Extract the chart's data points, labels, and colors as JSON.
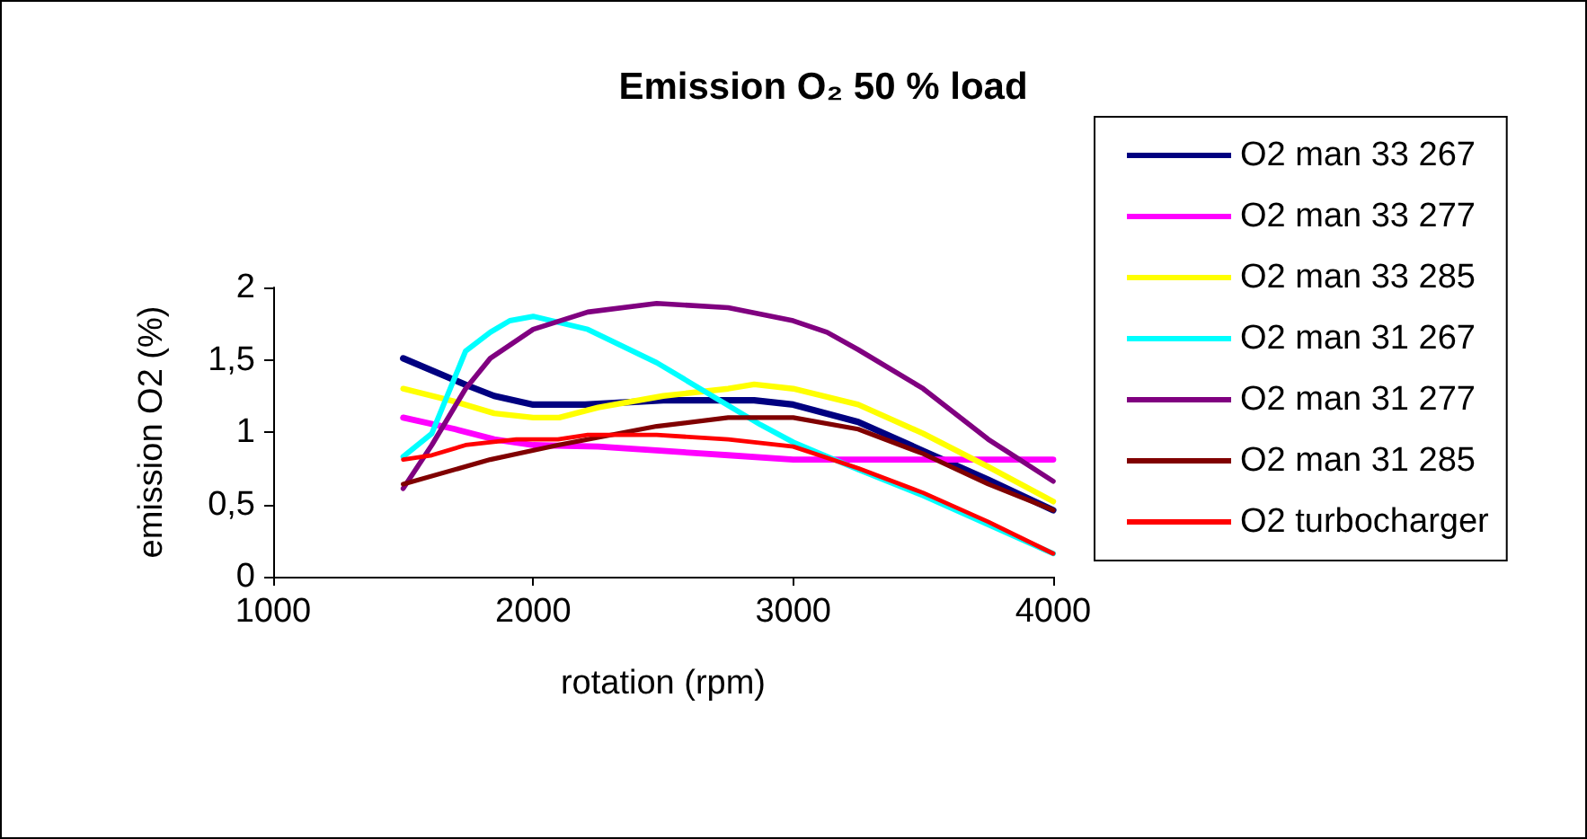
{
  "chart_data": {
    "type": "line",
    "title": "Emission O₂ 50 % load",
    "xlabel": "rotation (rpm)",
    "ylabel": "emission O2 (%)",
    "xlim": [
      1000,
      4000
    ],
    "xticks": [
      1000,
      2000,
      3000,
      4000
    ],
    "ylim": [
      0,
      2
    ],
    "yticks": [
      0,
      {
        "value": 0.5,
        "label": "0,5"
      },
      1,
      {
        "value": 1.5,
        "label": "1,5"
      },
      2
    ],
    "grid": false,
    "legend": "right",
    "marker": "none",
    "line_style": "solid",
    "series": [
      {
        "name": "O2 man 33 267",
        "color": "#000080",
        "x": [
          1500,
          1750,
          1850,
          2000,
          2200,
          2500,
          2850,
          3000,
          3250,
          3500,
          3750,
          4000
        ],
        "values": [
          1.51,
          1.32,
          1.25,
          1.19,
          1.19,
          1.22,
          1.22,
          1.19,
          1.07,
          0.87,
          0.67,
          0.46
        ]
      },
      {
        "name": "O2 man 33 277",
        "color": "#ff00ff",
        "x": [
          1500,
          1700,
          1850,
          2000,
          2250,
          2500,
          2750,
          3000,
          3250,
          4000
        ],
        "values": [
          1.1,
          1.02,
          0.95,
          0.91,
          0.9,
          0.87,
          0.84,
          0.81,
          0.81,
          0.81
        ]
      },
      {
        "name": "O2 man 33 285",
        "color": "#ffff00",
        "x": [
          1500,
          1700,
          1850,
          2000,
          2100,
          2250,
          2500,
          2750,
          2850,
          3000,
          3250,
          3500,
          3750,
          4000
        ],
        "values": [
          1.3,
          1.21,
          1.13,
          1.1,
          1.1,
          1.17,
          1.25,
          1.3,
          1.33,
          1.3,
          1.19,
          0.99,
          0.76,
          0.52
        ]
      },
      {
        "name": "O2 man 31 267",
        "color": "#00ffff",
        "x": [
          1500,
          1610,
          1740,
          1835,
          1910,
          2000,
          2210,
          2475,
          2875,
          3000,
          3250,
          3500,
          4000
        ],
        "values": [
          0.83,
          0.99,
          1.56,
          1.69,
          1.77,
          1.8,
          1.71,
          1.48,
          1.05,
          0.93,
          0.74,
          0.56,
          0.16
        ]
      },
      {
        "name": "O2 man 31 277",
        "color": "#800080",
        "x": [
          1500,
          1610,
          1740,
          1835,
          2000,
          2210,
          2475,
          2750,
          3000,
          3130,
          3250,
          3500,
          3750,
          4000
        ],
        "values": [
          0.61,
          0.91,
          1.3,
          1.51,
          1.71,
          1.83,
          1.89,
          1.86,
          1.77,
          1.69,
          1.57,
          1.3,
          0.95,
          0.66
        ]
      },
      {
        "name": "O2 man 31 285",
        "color": "#800000",
        "x": [
          1500,
          1835,
          2095,
          2475,
          2750,
          3000,
          3250,
          3500,
          3750,
          4000
        ],
        "values": [
          0.64,
          0.81,
          0.91,
          1.04,
          1.1,
          1.1,
          1.02,
          0.85,
          0.64,
          0.46
        ]
      },
      {
        "name": "O2 turbocharger",
        "color": "#ff0000",
        "x": [
          1500,
          1610,
          1740,
          1935,
          2095,
          2210,
          2475,
          2750,
          3000,
          3250,
          3500,
          3750,
          4000
        ],
        "values": [
          0.81,
          0.84,
          0.91,
          0.95,
          0.95,
          0.98,
          0.98,
          0.95,
          0.9,
          0.75,
          0.58,
          0.38,
          0.16
        ]
      }
    ]
  }
}
